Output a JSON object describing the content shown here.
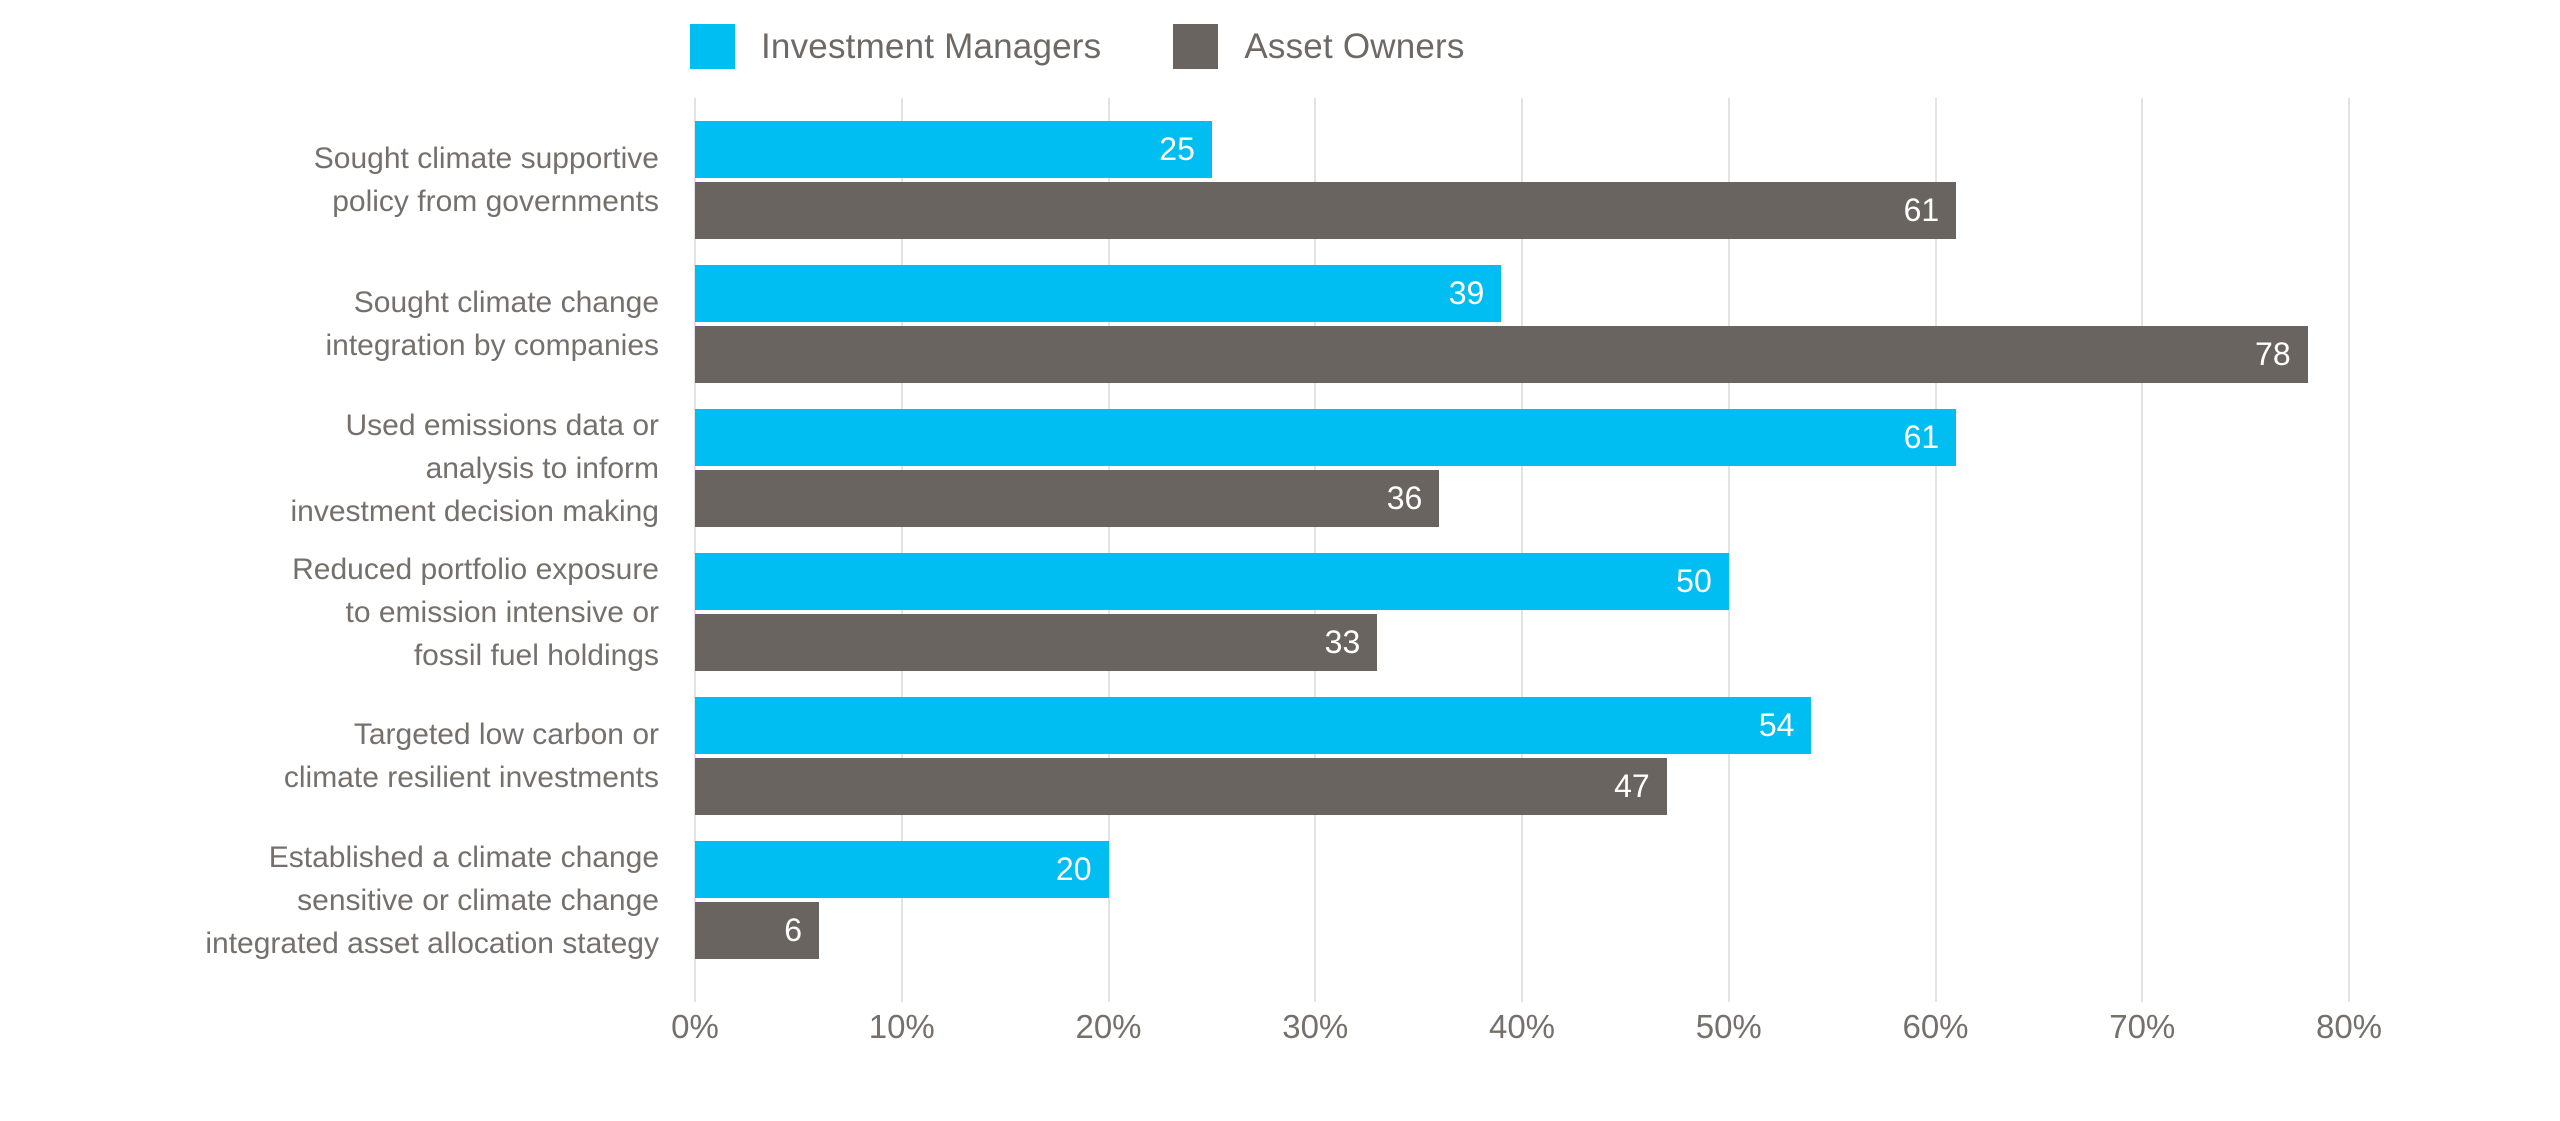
{
  "chart_data": {
    "type": "bar",
    "orientation": "horizontal",
    "title": "",
    "xlabel": "",
    "ylabel": "",
    "categories": [
      "Sought climate supportive\npolicy from governments",
      "Sought climate change\nintegration by companies",
      "Used emissions data or\nanalysis to inform\ninvestment decision making",
      "Reduced portfolio exposure\nto emission intensive or\nfossil fuel holdings",
      "Targeted low carbon or\nclimate resilient investments",
      "Established a climate change\nsensitive or climate change\nintegrated asset allocation stategy"
    ],
    "series": [
      {
        "name": "Investment Managers",
        "color": "#00bdf2",
        "values": [
          25,
          39,
          61,
          50,
          54,
          20
        ]
      },
      {
        "name": "Asset Owners",
        "color": "#696460",
        "values": [
          61,
          78,
          36,
          33,
          47,
          6
        ]
      }
    ],
    "xlim": [
      0,
      80
    ],
    "x_ticks": [
      "0%",
      "10%",
      "20%",
      "30%",
      "40%",
      "50%",
      "60%",
      "70%",
      "80%"
    ],
    "grid": "vertical",
    "legend_position": "top-left-of-plot",
    "value_labels": "inside-end",
    "colors": {
      "gridline": "#e3e3e3",
      "category_text": "#75706b",
      "tick_text": "#75706b",
      "legend_text": "#6e6964",
      "value_text": "#ffffff",
      "background": "#ffffff"
    }
  }
}
